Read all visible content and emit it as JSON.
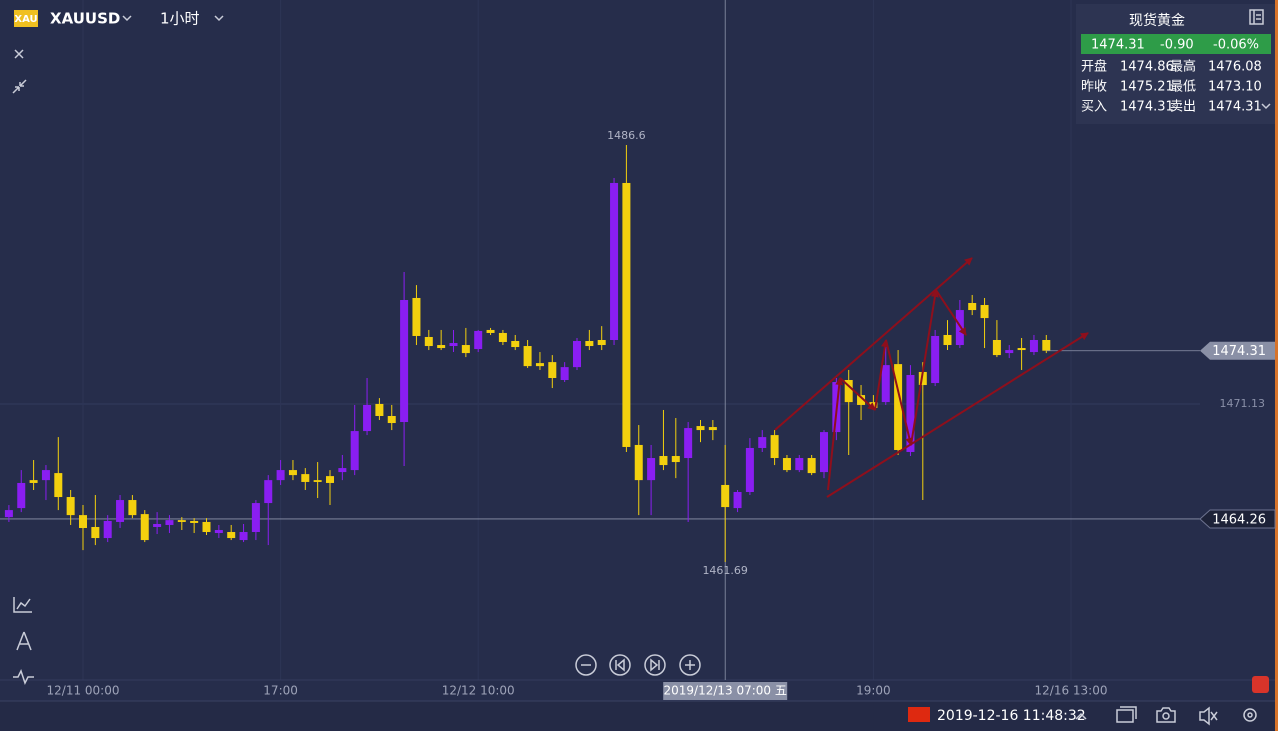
{
  "header": {
    "icon": "XAU",
    "symbol": "XAUUSD",
    "interval": "1小时"
  },
  "quote": {
    "title": "现货黄金",
    "price": "1474.31",
    "change": "-0.90",
    "change_pct": "-0.06%",
    "rows": [
      [
        "开盘",
        "1474.86",
        "最高",
        "1476.08"
      ],
      [
        "昨收",
        "1475.21",
        "最低",
        "1473.10"
      ],
      [
        "买入",
        "1474.31",
        "卖出",
        "1474.31"
      ]
    ]
  },
  "footer": {
    "datetime": "2019-12-16 11:48:32"
  },
  "chart_data": {
    "type": "candlestick",
    "categories": [
      null,
      null,
      null,
      null,
      null,
      null,
      "12/11 00:00",
      null,
      null,
      null,
      null,
      null,
      null,
      null,
      null,
      null,
      null,
      null,
      null,
      null,
      null,
      null,
      "17:00",
      null,
      null,
      null,
      null,
      null,
      null,
      null,
      null,
      null,
      null,
      null,
      null,
      null,
      null,
      null,
      "12/12 10:00",
      null,
      null,
      null,
      null,
      null,
      null,
      null,
      null,
      null,
      null,
      null,
      null,
      null,
      null,
      null,
      null,
      null,
      null,
      null,
      "2019/12/13 07:00 五",
      null,
      null,
      null,
      null,
      null,
      null,
      null,
      null,
      null,
      null,
      null,
      "19:00",
      null,
      null,
      null,
      null,
      null,
      null,
      null,
      null,
      null,
      null,
      null,
      null,
      null,
      null,
      null,
      "12/16 13:00"
    ],
    "open": [
      1464.37,
      1464.91,
      1466.58,
      1466.58,
      1467.0,
      1465.57,
      1464.49,
      1463.78,
      1463.12,
      1464.08,
      1465.39,
      1464.55,
      1463.78,
      1463.9,
      1464.19,
      1464.14,
      1464.08,
      1463.42,
      1463.48,
      1463.0,
      1463.48,
      1465.21,
      1466.58,
      1467.18,
      1466.94,
      1466.58,
      1466.82,
      1467.06,
      1467.18,
      1469.51,
      1471.13,
      1470.41,
      1470.05,
      1477.46,
      1475.13,
      1474.65,
      1474.59,
      1474.65,
      1474.41,
      1475.55,
      1475.37,
      1474.89,
      1474.59,
      1473.57,
      1473.63,
      1472.56,
      1473.33,
      1474.89,
      1474.95,
      1474.95,
      1484.33,
      1468.68,
      1466.58,
      1468.02,
      1468.02,
      1467.9,
      1469.81,
      1469.75,
      1466.29,
      1464.91,
      1465.87,
      1468.5,
      1469.27,
      1467.9,
      1467.18,
      1467.9,
      1467.06,
      1469.45,
      1472.56,
      1471.66,
      1471.24,
      1471.24,
      1473.51,
      1468.26,
      1473.04,
      1472.38,
      1475.25,
      1474.65,
      1477.16,
      1477.04,
      1474.95,
      1474.17,
      1474.47,
      1474.23,
      1474.95,
      null,
      null
    ],
    "high": [
      1465.09,
      1467.18,
      1467.78,
      1467.48,
      1469.15,
      1465.99,
      1465.09,
      1465.69,
      1464.49,
      1465.69,
      1465.69,
      1464.79,
      1464.67,
      1464.49,
      1464.37,
      1464.31,
      1464.31,
      1463.9,
      1463.9,
      1463.96,
      1465.39,
      1466.88,
      1467.78,
      1467.78,
      1467.3,
      1467.66,
      1467.18,
      1468.08,
      1471.07,
      1472.68,
      1471.48,
      1471.07,
      1479.01,
      1478.23,
      1475.55,
      1475.55,
      1475.55,
      1475.67,
      1475.55,
      1475.67,
      1475.55,
      1475.25,
      1474.95,
      1474.23,
      1474.05,
      1473.63,
      1475.07,
      1475.55,
      1475.78,
      1484.63,
      1486.6,
      1469.87,
      1468.68,
      1470.77,
      1470.29,
      1470.05,
      1470.17,
      1470.17,
      1468.68,
      1465.99,
      1469.09,
      1469.57,
      1469.57,
      1468.08,
      1468.08,
      1468.08,
      1469.57,
      1472.68,
      1473.16,
      1472.26,
      1471.66,
      1474.95,
      1474.35,
      1473.45,
      1473.63,
      1475.55,
      1476.14,
      1477.34,
      1477.64,
      1477.46,
      1476.14,
      1474.65,
      1475.07,
      1475.25,
      1475.25,
      null,
      null
    ],
    "low": [
      1464.08,
      1464.67,
      1465.99,
      1465.39,
      1464.79,
      1463.9,
      1462.4,
      1462.7,
      1462.88,
      1463.72,
      1464.31,
      1462.88,
      1463.36,
      1463.42,
      1463.6,
      1463.42,
      1463.3,
      1463.12,
      1463.0,
      1462.88,
      1463.0,
      1462.7,
      1466.29,
      1466.58,
      1465.99,
      1465.51,
      1465.09,
      1466.58,
      1466.88,
      1469.27,
      1470.17,
      1469.57,
      1467.42,
      1474.65,
      1474.35,
      1474.35,
      1474.23,
      1473.93,
      1474.23,
      1475.25,
      1474.65,
      1474.35,
      1473.28,
      1473.16,
      1472.08,
      1472.44,
      1473.16,
      1474.35,
      1474.35,
      1474.65,
      1468.26,
      1464.49,
      1464.49,
      1467.18,
      1466.7,
      1464.08,
      1468.85,
      1468.97,
      1461.69,
      1464.67,
      1465.69,
      1468.26,
      1467.48,
      1467.06,
      1467.06,
      1466.88,
      1466.7,
      1468.97,
      1468.08,
      1470.17,
      1470.77,
      1471.07,
      1468.08,
      1468.02,
      1465.39,
      1472.2,
      1474.35,
      1474.47,
      1476.44,
      1474.47,
      1473.93,
      1473.87,
      1473.16,
      1474.05,
      1474.17,
      null,
      null
    ],
    "close": [
      1464.79,
      1466.41,
      1466.41,
      1467.18,
      1465.57,
      1464.49,
      1463.72,
      1463.12,
      1464.14,
      1465.39,
      1464.49,
      1463.0,
      1463.96,
      1464.19,
      1464.08,
      1464.02,
      1463.48,
      1463.6,
      1463.12,
      1463.48,
      1465.21,
      1466.58,
      1467.18,
      1466.88,
      1466.47,
      1466.47,
      1466.41,
      1467.3,
      1469.51,
      1471.07,
      1470.41,
      1469.99,
      1477.34,
      1475.19,
      1474.59,
      1474.47,
      1474.77,
      1474.17,
      1475.49,
      1475.37,
      1474.83,
      1474.53,
      1473.39,
      1473.39,
      1472.68,
      1473.33,
      1474.89,
      1474.59,
      1474.65,
      1484.33,
      1468.56,
      1466.58,
      1467.9,
      1467.48,
      1467.66,
      1469.69,
      1469.57,
      1469.57,
      1464.97,
      1465.87,
      1468.5,
      1469.15,
      1467.9,
      1467.18,
      1467.9,
      1467.0,
      1469.45,
      1472.44,
      1471.24,
      1471.07,
      1470.89,
      1473.45,
      1468.38,
      1472.86,
      1472.26,
      1475.19,
      1474.65,
      1476.74,
      1476.74,
      1476.26,
      1474.05,
      1474.35,
      1474.35,
      1474.95,
      1474.31,
      null,
      null
    ],
    "up_color": "#8a1ef2",
    "down_color": "#f3d00e",
    "ylim": [
      1454.64,
      1495.26
    ],
    "yticks": [
      1471.13
    ],
    "grid": true,
    "last_price": 1474.31,
    "crosshair": {
      "category": "2019/12/13 07:00 五",
      "value": 1464.26
    }
  }
}
